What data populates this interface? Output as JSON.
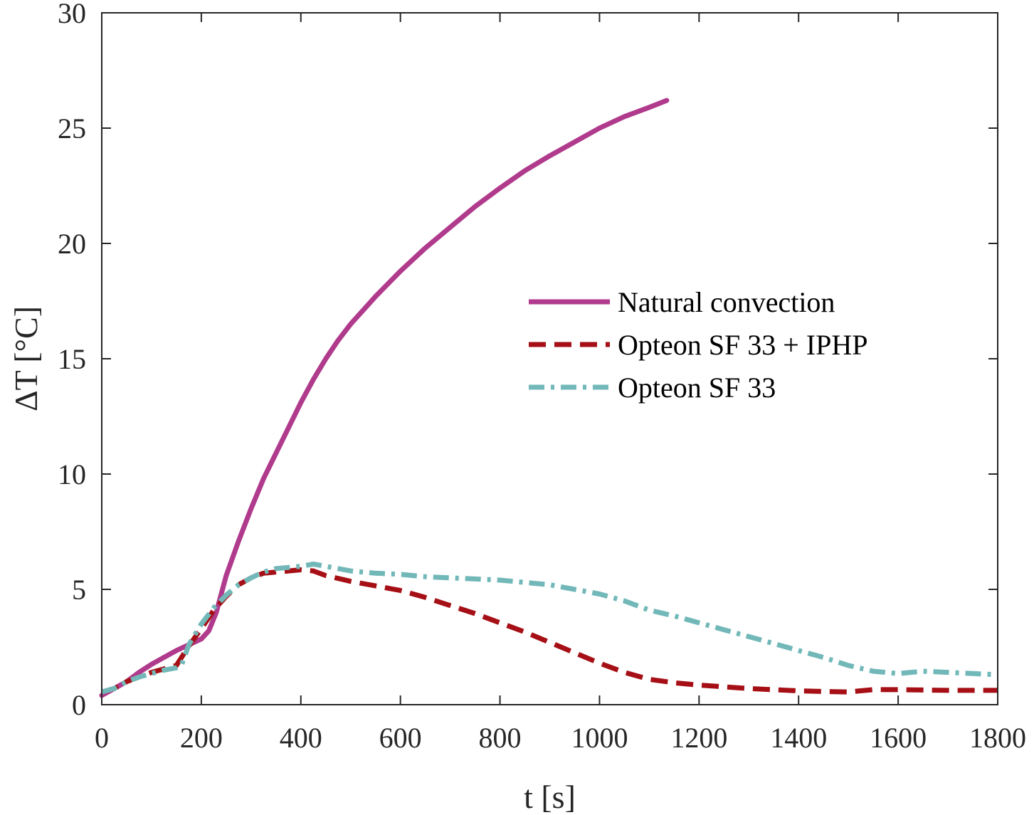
{
  "chart_data": {
    "type": "line",
    "title": "",
    "xlabel": "t [s]",
    "ylabel": "ΔT [°C]",
    "xlim": [
      0,
      1800
    ],
    "ylim": [
      0,
      30
    ],
    "xticks": [
      0,
      200,
      400,
      600,
      800,
      1000,
      1200,
      1400,
      1600,
      1800
    ],
    "yticks": [
      0,
      5,
      10,
      15,
      20,
      25,
      30
    ],
    "grid": false,
    "box": true,
    "legend_position": "right-middle",
    "series": [
      {
        "name": "Natural convection",
        "color": "#b03a8c",
        "style": "solid",
        "x": [
          0,
          25,
          50,
          75,
          100,
          125,
          150,
          175,
          200,
          215,
          230,
          250,
          275,
          300,
          325,
          350,
          375,
          400,
          425,
          450,
          475,
          500,
          525,
          550,
          575,
          600,
          650,
          700,
          750,
          800,
          850,
          900,
          950,
          1000,
          1050,
          1100,
          1135
        ],
        "y": [
          0.4,
          0.7,
          1.0,
          1.4,
          1.75,
          2.05,
          2.35,
          2.6,
          2.85,
          3.2,
          4.0,
          5.6,
          7.1,
          8.5,
          9.8,
          10.9,
          12.0,
          13.1,
          14.1,
          15.0,
          15.8,
          16.5,
          17.1,
          17.7,
          18.25,
          18.8,
          19.8,
          20.7,
          21.6,
          22.4,
          23.15,
          23.8,
          24.4,
          25.0,
          25.5,
          25.9,
          26.2
        ]
      },
      {
        "name": "Opteon SF 33 + IPHP",
        "color": "#a50f15",
        "style": "dashed",
        "x": [
          0,
          25,
          50,
          75,
          100,
          125,
          150,
          175,
          200,
          225,
          250,
          275,
          300,
          325,
          350,
          375,
          400,
          425,
          450,
          500,
          550,
          600,
          650,
          700,
          750,
          800,
          850,
          900,
          950,
          1000,
          1050,
          1100,
          1150,
          1200,
          1300,
          1400,
          1500,
          1550,
          1600,
          1700,
          1800
        ],
        "y": [
          0.55,
          0.7,
          1.0,
          1.2,
          1.4,
          1.55,
          1.7,
          2.55,
          3.3,
          4.1,
          4.7,
          5.2,
          5.5,
          5.7,
          5.75,
          5.8,
          5.85,
          5.8,
          5.6,
          5.35,
          5.15,
          4.95,
          4.65,
          4.3,
          3.95,
          3.55,
          3.15,
          2.7,
          2.25,
          1.8,
          1.4,
          1.1,
          0.95,
          0.85,
          0.7,
          0.6,
          0.55,
          0.65,
          0.65,
          0.62,
          0.62
        ]
      },
      {
        "name": "Opteon SF 33",
        "color": "#72b8b8",
        "style": "dashdot",
        "x": [
          0,
          25,
          50,
          75,
          100,
          125,
          150,
          160,
          175,
          200,
          225,
          250,
          275,
          300,
          325,
          350,
          375,
          400,
          425,
          450,
          500,
          550,
          600,
          650,
          700,
          750,
          800,
          850,
          900,
          950,
          1000,
          1050,
          1100,
          1150,
          1200,
          1250,
          1300,
          1350,
          1400,
          1450,
          1500,
          1550,
          1600,
          1650,
          1700,
          1750,
          1800
        ],
        "y": [
          0.55,
          0.7,
          1.0,
          1.2,
          1.35,
          1.5,
          1.6,
          1.7,
          2.6,
          3.5,
          4.2,
          4.75,
          5.2,
          5.5,
          5.75,
          5.9,
          5.95,
          6.0,
          6.1,
          6.0,
          5.8,
          5.7,
          5.65,
          5.55,
          5.5,
          5.45,
          5.4,
          5.3,
          5.2,
          5.0,
          4.8,
          4.5,
          4.1,
          3.85,
          3.55,
          3.25,
          2.95,
          2.65,
          2.35,
          2.05,
          1.7,
          1.45,
          1.35,
          1.45,
          1.4,
          1.35,
          1.3
        ]
      }
    ]
  }
}
